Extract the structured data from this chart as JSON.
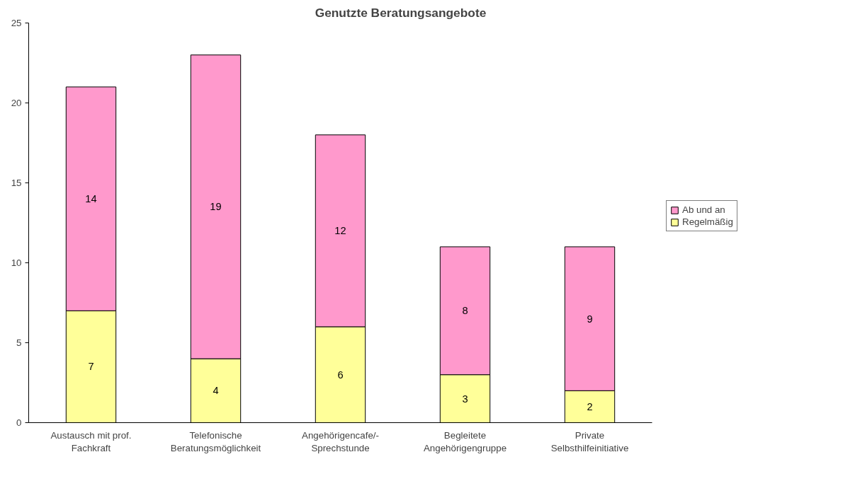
{
  "chart_data": {
    "type": "bar",
    "title": "Genutzte Beratungsangebote",
    "stacked": true,
    "categories": [
      "Austausch mit prof.\nFachkraft",
      "Telefonische\nBeratungsmöglichkeit",
      "Angehörigencafe/-\nSprechstunde",
      "Begleitete\nAngehörigengruppe",
      "Private\nSelbsthilfeinitiative"
    ],
    "series": [
      {
        "name": "Regelmäßig",
        "color": "#ffff99",
        "values": [
          7,
          4,
          6,
          3,
          2
        ]
      },
      {
        "name": "Ab und an",
        "color": "#ff99cc",
        "values": [
          14,
          19,
          12,
          8,
          9
        ]
      }
    ],
    "ylim": [
      0,
      25
    ],
    "yticks": [
      0,
      5,
      10,
      15,
      20,
      25
    ],
    "grid": false,
    "legend": "right",
    "data_labels": true
  }
}
